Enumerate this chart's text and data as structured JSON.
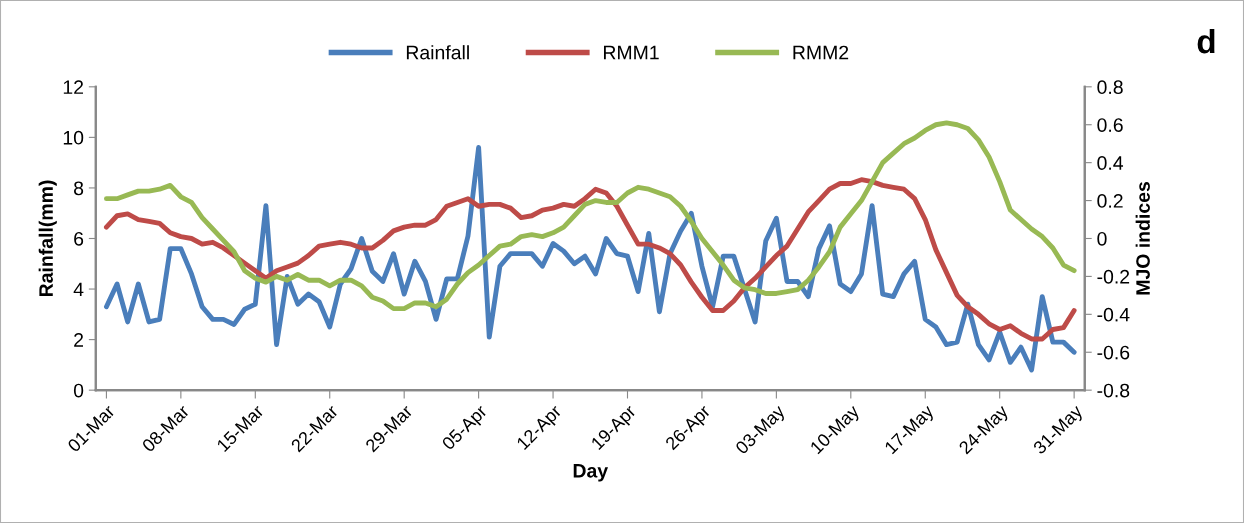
{
  "chart_data": {
    "type": "line",
    "xlabel": "Day",
    "ylabel": "Rainfall(mm)",
    "y2label": "MJO indices",
    "annotations": [
      "d"
    ],
    "categories": [
      "01-Mar",
      null,
      null,
      null,
      null,
      null,
      null,
      "08-Mar",
      null,
      null,
      null,
      null,
      null,
      null,
      "15-Mar",
      null,
      null,
      null,
      null,
      null,
      null,
      "22-Mar",
      null,
      null,
      null,
      null,
      null,
      null,
      "29-Mar",
      null,
      null,
      null,
      null,
      null,
      null,
      "05-Apr",
      null,
      null,
      null,
      null,
      null,
      null,
      "12-Apr",
      null,
      null,
      null,
      null,
      null,
      null,
      "19-Apr",
      null,
      null,
      null,
      null,
      null,
      null,
      "26-Apr",
      null,
      null,
      null,
      null,
      null,
      null,
      "03-May",
      null,
      null,
      null,
      null,
      null,
      null,
      "10-May",
      null,
      null,
      null,
      null,
      null,
      null,
      "17-May",
      null,
      null,
      null,
      null,
      null,
      null,
      "24-May",
      null,
      null,
      null,
      null,
      null,
      null,
      "31-May"
    ],
    "series": [
      {
        "name": "Rainfall",
        "color": "#4a7ebb",
        "values": [
          3.3,
          4.2,
          2.7,
          4.2,
          2.7,
          2.8,
          5.6,
          5.6,
          4.6,
          3.3,
          2.8,
          2.8,
          2.6,
          3.2,
          3.4,
          7.3,
          1.8,
          4.5,
          3.4,
          3.8,
          3.5,
          2.5,
          4.2,
          4.8,
          6.0,
          4.7,
          4.3,
          5.4,
          3.8,
          5.1,
          4.3,
          2.8,
          4.4,
          4.4,
          6.1,
          9.6,
          2.1,
          4.9,
          5.4,
          5.4,
          5.4,
          4.9,
          5.8,
          5.5,
          5.0,
          5.3,
          4.6,
          6.0,
          5.4,
          5.3,
          3.9,
          6.2,
          3.1,
          5.4,
          6.3,
          7.0,
          4.9,
          3.3,
          5.3,
          5.3,
          4.0,
          2.7,
          5.9,
          6.8,
          4.3,
          4.3,
          3.7,
          5.6,
          6.5,
          4.2,
          3.9,
          4.6,
          7.3,
          3.8,
          3.7,
          4.6,
          5.1,
          2.8,
          2.5,
          1.8,
          1.9,
          3.4,
          1.8,
          1.2,
          2.3,
          1.1,
          1.7,
          0.8,
          3.7,
          1.9,
          1.9,
          1.5
        ]
      },
      {
        "name": "RMM1",
        "color": "#be4b48",
        "axis": "y2",
        "values": [
          0.06,
          0.12,
          0.13,
          0.1,
          0.09,
          0.08,
          0.03,
          0.01,
          0.0,
          -0.03,
          -0.02,
          -0.05,
          -0.09,
          -0.13,
          -0.17,
          -0.21,
          -0.17,
          -0.15,
          -0.13,
          -0.09,
          -0.04,
          -0.03,
          -0.02,
          -0.03,
          -0.05,
          -0.05,
          -0.01,
          0.04,
          0.06,
          0.07,
          0.07,
          0.1,
          0.17,
          0.19,
          0.21,
          0.17,
          0.18,
          0.18,
          0.16,
          0.11,
          0.12,
          0.15,
          0.16,
          0.18,
          0.17,
          0.21,
          0.26,
          0.24,
          0.17,
          0.07,
          -0.03,
          -0.03,
          -0.05,
          -0.08,
          -0.14,
          -0.23,
          -0.31,
          -0.38,
          -0.38,
          -0.33,
          -0.26,
          -0.21,
          -0.15,
          -0.09,
          -0.04,
          0.05,
          0.14,
          0.2,
          0.26,
          0.29,
          0.29,
          0.31,
          0.3,
          0.28,
          0.27,
          0.26,
          0.21,
          0.1,
          -0.06,
          -0.18,
          -0.3,
          -0.36,
          -0.4,
          -0.45,
          -0.48,
          -0.46,
          -0.5,
          -0.53,
          -0.53,
          -0.48,
          -0.47,
          -0.38
        ]
      },
      {
        "name": "RMM2",
        "color": "#98b954",
        "axis": "y2",
        "values": [
          0.21,
          0.21,
          0.23,
          0.25,
          0.25,
          0.26,
          0.28,
          0.22,
          0.19,
          0.11,
          0.05,
          -0.01,
          -0.07,
          -0.17,
          -0.21,
          -0.23,
          -0.2,
          -0.22,
          -0.19,
          -0.22,
          -0.22,
          -0.25,
          -0.22,
          -0.22,
          -0.25,
          -0.31,
          -0.33,
          -0.37,
          -0.37,
          -0.34,
          -0.34,
          -0.36,
          -0.32,
          -0.24,
          -0.18,
          -0.14,
          -0.09,
          -0.04,
          -0.03,
          0.01,
          0.02,
          0.01,
          0.03,
          0.06,
          0.12,
          0.18,
          0.2,
          0.19,
          0.19,
          0.24,
          0.27,
          0.26,
          0.24,
          0.22,
          0.17,
          0.09,
          0.0,
          -0.07,
          -0.14,
          -0.22,
          -0.26,
          -0.27,
          -0.29,
          -0.29,
          -0.28,
          -0.27,
          -0.22,
          -0.15,
          -0.07,
          0.06,
          0.13,
          0.2,
          0.3,
          0.4,
          0.45,
          0.5,
          0.53,
          0.57,
          0.6,
          0.61,
          0.6,
          0.58,
          0.52,
          0.43,
          0.3,
          0.15,
          0.1,
          0.05,
          0.01,
          -0.05,
          -0.14,
          -0.17
        ]
      }
    ],
    "ylim": [
      0,
      12
    ],
    "yticks": [
      0,
      2,
      4,
      6,
      8,
      10,
      12
    ],
    "y2lim": [
      -0.8,
      0.8
    ],
    "y2ticks": [
      -0.8,
      -0.6,
      -0.4,
      -0.2,
      0,
      0.2,
      0.4,
      0.6,
      0.8
    ],
    "legend": "top",
    "grid": false,
    "marker": "none",
    "line_style": "solid"
  }
}
